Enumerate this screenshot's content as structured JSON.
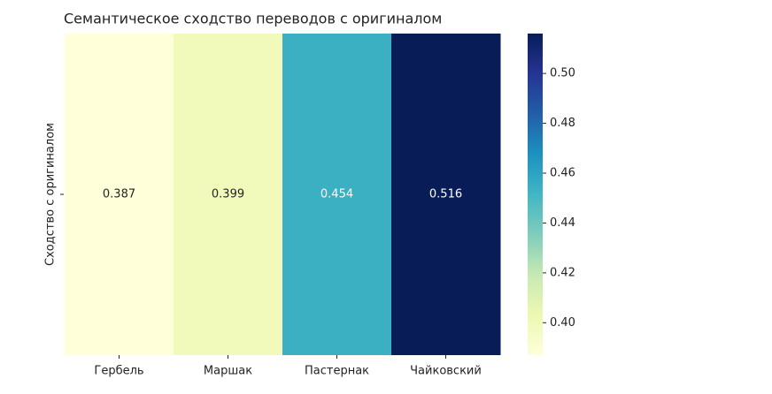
{
  "chart_data": {
    "type": "heatmap",
    "title": "Семантическое сходство переводов с оригиналом",
    "row_label": "Сходство с оригиналом",
    "categories": [
      "Гербель",
      "Маршак",
      "Пастернак",
      "Чайковский"
    ],
    "values": [
      0.387,
      0.399,
      0.454,
      0.516
    ],
    "colormap": "YlGnBu",
    "ylim": [
      0.387,
      0.516
    ],
    "yticks": [
      {
        "value": 0.4,
        "label": "0.40"
      },
      {
        "value": 0.42,
        "label": "0.42"
      },
      {
        "value": 0.44,
        "label": "0.44"
      },
      {
        "value": 0.46,
        "label": "0.46"
      },
      {
        "value": 0.48,
        "label": "0.48"
      },
      {
        "value": 0.5,
        "label": "0.50"
      }
    ]
  }
}
